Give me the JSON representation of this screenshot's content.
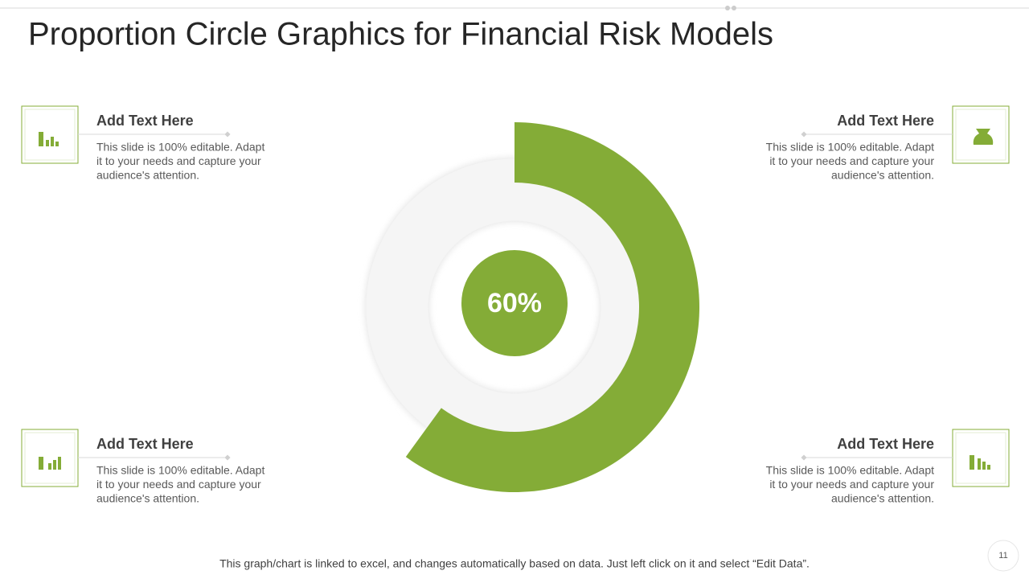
{
  "title": "Proportion Circle Graphics for Financial Risk Models",
  "chart_data": {
    "type": "donut",
    "values": [
      60
    ],
    "value_labels": [
      "60%"
    ],
    "color": "#84ac37"
  },
  "panels": [
    {
      "heading": "Add Text Here",
      "body": [
        "This slide is 100% editable. Adapt",
        "it to your needs and capture your",
        "audience's attention."
      ]
    },
    {
      "heading": "Add Text Here",
      "body": [
        "This slide is 100% editable. Adapt",
        "it to your needs and capture your",
        "audience's attention."
      ]
    },
    {
      "heading": "Add Text Here",
      "body": [
        "This slide is 100% editable. Adapt",
        "it to your needs and capture your",
        "audience's attention."
      ]
    },
    {
      "heading": "Add Text Here",
      "body": [
        "This slide is 100% editable. Adapt",
        "it to your needs and capture your",
        "audience's attention."
      ]
    }
  ],
  "footer": "This graph/chart is linked to excel, and changes automatically based on data. Just left click on it and select “Edit Data”.",
  "page_number": "11"
}
